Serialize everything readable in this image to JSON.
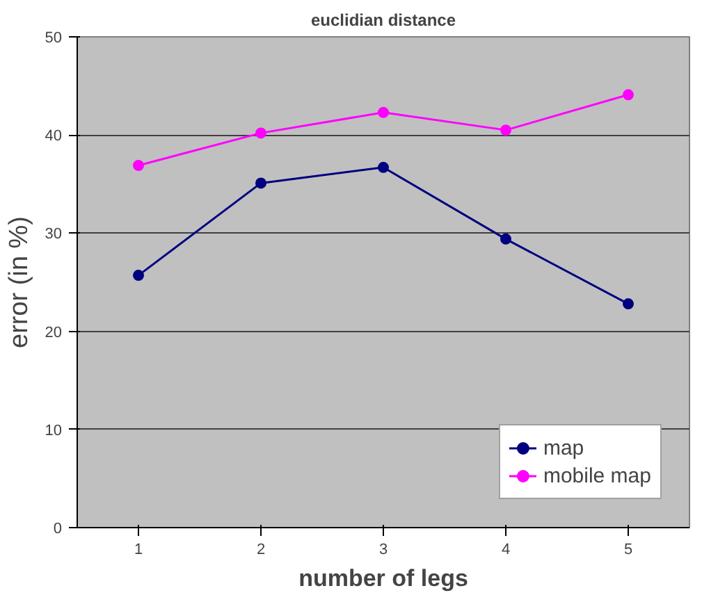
{
  "chart_data": {
    "type": "line",
    "title": "euclidian distance",
    "xlabel": "number of legs",
    "ylabel": "error (in %)",
    "categories": [
      "1",
      "2",
      "3",
      "4",
      "5"
    ],
    "series": [
      {
        "name": "map",
        "color": "#000080",
        "values": [
          25.7,
          35.1,
          36.7,
          29.4,
          22.8
        ]
      },
      {
        "name": "mobile map",
        "color": "#ff00ff",
        "values": [
          36.9,
          40.2,
          42.3,
          40.5,
          44.1
        ]
      }
    ],
    "ylim": [
      0,
      50
    ],
    "yticks": [
      0,
      10,
      20,
      30,
      40,
      50
    ],
    "grid": "y",
    "legend": "bottom right",
    "marker": "circle",
    "line_style": "solid"
  }
}
